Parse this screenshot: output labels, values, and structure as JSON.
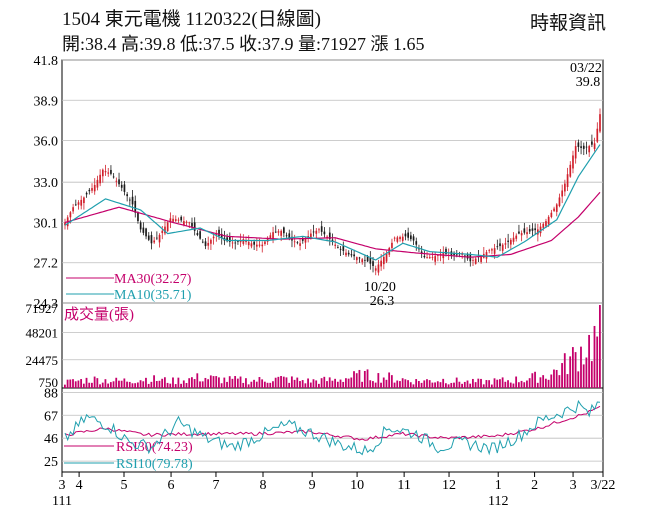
{
  "header": {
    "code": "1504",
    "name": "東元電機",
    "date_code": "1120322",
    "chart_kind": "(日線圖)",
    "quote": "開:38.4 高:39.8 低:37.5 收:37.9 量:71927 漲 1.65",
    "source": "時報資訊"
  },
  "chart_data": [
    {
      "type": "candlestick",
      "panel": "price",
      "yticks": [
        "41.8",
        "38.9",
        "36.0",
        "33.0",
        "30.1",
        "27.2",
        "24.3"
      ],
      "ylim": [
        24.3,
        41.8
      ],
      "annotations": {
        "high_date": "03/22",
        "high_value": "39.8",
        "low_date": "10/20",
        "low_value": "26.3"
      },
      "legend": [
        {
          "name": "MA30(32.27)",
          "color": "#c4006b"
        },
        {
          "name": "MA10(35.71)",
          "color": "#1f9fae"
        }
      ],
      "candle_up_color": "#d11f2b",
      "candle_down_color": "#1b1b1b",
      "keypoints_close": [
        [
          0,
          30.1
        ],
        [
          3,
          31.2
        ],
        [
          7,
          31.9
        ],
        [
          11,
          32.8
        ],
        [
          14,
          33.9
        ],
        [
          17,
          33.6
        ],
        [
          21,
          32.6
        ],
        [
          25,
          31.4
        ],
        [
          28,
          29.6
        ],
        [
          32,
          28.6
        ],
        [
          35,
          29.2
        ],
        [
          39,
          30.4
        ],
        [
          42,
          30.3
        ],
        [
          46,
          30.1
        ],
        [
          49,
          29.2
        ],
        [
          52,
          28.4
        ],
        [
          56,
          29.3
        ],
        [
          59,
          28.8
        ],
        [
          63,
          28.6
        ],
        [
          66,
          28.9
        ],
        [
          70,
          28.5
        ],
        [
          73,
          28.5
        ],
        [
          77,
          29.4
        ],
        [
          80,
          29.5
        ],
        [
          84,
          28.8
        ],
        [
          87,
          28.6
        ],
        [
          91,
          29.3
        ],
        [
          94,
          29.6
        ],
        [
          98,
          28.9
        ],
        [
          101,
          28.3
        ],
        [
          105,
          27.8
        ],
        [
          108,
          27.6
        ],
        [
          112,
          27.3
        ],
        [
          115,
          26.8
        ],
        [
          119,
          27.9
        ],
        [
          122,
          29.0
        ],
        [
          126,
          29.1
        ],
        [
          129,
          28.8
        ],
        [
          133,
          27.6
        ],
        [
          136,
          27.6
        ],
        [
          140,
          27.9
        ],
        [
          143,
          27.7
        ],
        [
          147,
          27.9
        ],
        [
          150,
          27.3
        ],
        [
          154,
          27.7
        ],
        [
          157,
          28.1
        ],
        [
          161,
          28.4
        ],
        [
          164,
          28.7
        ],
        [
          168,
          29.3
        ],
        [
          171,
          29.4
        ],
        [
          175,
          29.6
        ],
        [
          178,
          30.2
        ],
        [
          182,
          31.4
        ],
        [
          185,
          32.9
        ],
        [
          189,
          35.6
        ],
        [
          192,
          35.4
        ],
        [
          196,
          35.8
        ],
        [
          198,
          37.9
        ]
      ],
      "ma30_keypoints": [
        [
          0,
          30.1
        ],
        [
          20,
          31.2
        ],
        [
          40,
          30.1
        ],
        [
          60,
          29.1
        ],
        [
          80,
          28.9
        ],
        [
          100,
          29.0
        ],
        [
          115,
          28.2
        ],
        [
          130,
          27.9
        ],
        [
          150,
          27.6
        ],
        [
          165,
          27.8
        ],
        [
          180,
          28.8
        ],
        [
          190,
          30.5
        ],
        [
          198,
          32.27
        ]
      ],
      "ma10_keypoints": [
        [
          0,
          29.9
        ],
        [
          15,
          31.8
        ],
        [
          28,
          31.0
        ],
        [
          38,
          29.3
        ],
        [
          50,
          29.7
        ],
        [
          60,
          28.8
        ],
        [
          75,
          28.8
        ],
        [
          88,
          29.1
        ],
        [
          100,
          28.7
        ],
        [
          115,
          27.4
        ],
        [
          125,
          28.6
        ],
        [
          135,
          28.0
        ],
        [
          150,
          27.8
        ],
        [
          160,
          27.6
        ],
        [
          170,
          28.7
        ],
        [
          182,
          30.3
        ],
        [
          190,
          33.4
        ],
        [
          198,
          35.71
        ]
      ]
    },
    {
      "type": "bar",
      "panel": "volume",
      "title": "成交量(張)",
      "yticks": [
        "71927",
        "48201",
        "24475",
        "750"
      ],
      "ylim": [
        0,
        71927
      ],
      "color": "#c4006b",
      "keypoints_volume": [
        [
          0,
          5000
        ],
        [
          10,
          7500
        ],
        [
          20,
          6000
        ],
        [
          30,
          8000
        ],
        [
          40,
          6000
        ],
        [
          50,
          9000
        ],
        [
          60,
          7000
        ],
        [
          70,
          6500
        ],
        [
          80,
          8000
        ],
        [
          90,
          6000
        ],
        [
          100,
          7000
        ],
        [
          110,
          11000
        ],
        [
          120,
          9000
        ],
        [
          130,
          6000
        ],
        [
          140,
          7000
        ],
        [
          150,
          5000
        ],
        [
          160,
          6000
        ],
        [
          170,
          7500
        ],
        [
          180,
          12000
        ],
        [
          186,
          22000
        ],
        [
          190,
          30000
        ],
        [
          194,
          38000
        ],
        [
          197,
          45000
        ],
        [
          198,
          71927
        ]
      ]
    },
    {
      "type": "line",
      "panel": "rsi",
      "yticks": [
        "88",
        "67",
        "46",
        "25"
      ],
      "ylim": [
        15,
        92
      ],
      "series": [
        {
          "name": "RSI30(74.23)",
          "color": "#c4006b",
          "keypoints": [
            [
              0,
              49
            ],
            [
              15,
              55
            ],
            [
              30,
              49
            ],
            [
              50,
              50
            ],
            [
              70,
              50
            ],
            [
              90,
              52
            ],
            [
              110,
              45
            ],
            [
              125,
              50
            ],
            [
              140,
              46
            ],
            [
              160,
              48
            ],
            [
              175,
              55
            ],
            [
              185,
              63
            ],
            [
              192,
              68
            ],
            [
              198,
              74.23
            ]
          ]
        },
        {
          "name": "RSI10(79.78)",
          "color": "#1f9fae",
          "keypoints": [
            [
              0,
              45
            ],
            [
              8,
              65
            ],
            [
              16,
              58
            ],
            [
              24,
              42
            ],
            [
              32,
              38
            ],
            [
              42,
              60
            ],
            [
              52,
              46
            ],
            [
              62,
              38
            ],
            [
              72,
              48
            ],
            [
              82,
              58
            ],
            [
              92,
              50
            ],
            [
              102,
              40
            ],
            [
              112,
              34
            ],
            [
              120,
              56
            ],
            [
              130,
              50
            ],
            [
              138,
              38
            ],
            [
              148,
              42
            ],
            [
              158,
              36
            ],
            [
              168,
              48
            ],
            [
              176,
              62
            ],
            [
              184,
              70
            ],
            [
              190,
              76
            ],
            [
              194,
              68
            ],
            [
              198,
              79.78
            ]
          ]
        }
      ]
    }
  ],
  "x_axis": {
    "ticks": [
      {
        "label": "3",
        "idx": 0
      },
      {
        "label": "4",
        "idx": 8
      },
      {
        "label": "5",
        "idx": 29
      },
      {
        "label": "6",
        "idx": 51
      },
      {
        "label": "7",
        "idx": 72
      },
      {
        "label": "8",
        "idx": 94
      },
      {
        "label": "9",
        "idx": 117
      },
      {
        "label": "10",
        "idx": 138
      },
      {
        "label": "11",
        "idx": 160
      },
      {
        "label": "12",
        "idx": 181
      },
      {
        "label": "1",
        "idx": 204
      },
      {
        "label": "2",
        "idx": 221
      },
      {
        "label": "3",
        "idx": 239
      },
      {
        "label": "3/22",
        "idx": 253
      }
    ],
    "year_labels": [
      {
        "label": "111",
        "idx": 0
      },
      {
        "label": "112",
        "idx": 204
      }
    ]
  }
}
